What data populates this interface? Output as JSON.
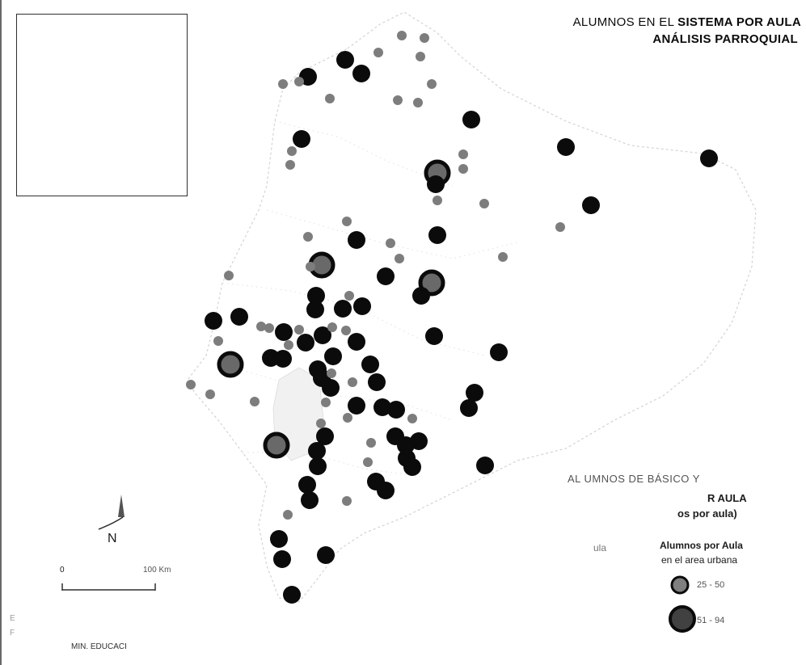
{
  "title": {
    "line1_prefix": "ALUMNOS EN EL ",
    "line1_bold": "SISTEMA POR AULA",
    "line2": "ANÁLISIS PARROQUIAL"
  },
  "legend": {
    "heading_line1": "AL UMNOS DE BÁSICO Y",
    "heading_line2": "R AULA",
    "heading_line3": "os por aula)",
    "column1_label": "ula",
    "column2_label_line1": "Alumnos por Aula",
    "column2_label_line2": "en el area urbana",
    "classes": [
      {
        "label": "25 - 50",
        "symbol": "small-circle",
        "color": "#7f7f7f"
      },
      {
        "label": "51 - 94",
        "symbol": "large-circle",
        "color": "#1a1a1a"
      }
    ]
  },
  "north_arrow": {
    "label": "N"
  },
  "scale_bar": {
    "start_label": "0",
    "end_label": "100 Km"
  },
  "source": {
    "line1": "E",
    "line2": "F",
    "line3": "MIN. EDUCACI"
  },
  "colors": {
    "dark_symbol": "#111111",
    "gray_symbol": "#808080",
    "boundary": "#c8c8c8"
  },
  "symbols_note_icon": "proportional-circle-icon"
}
